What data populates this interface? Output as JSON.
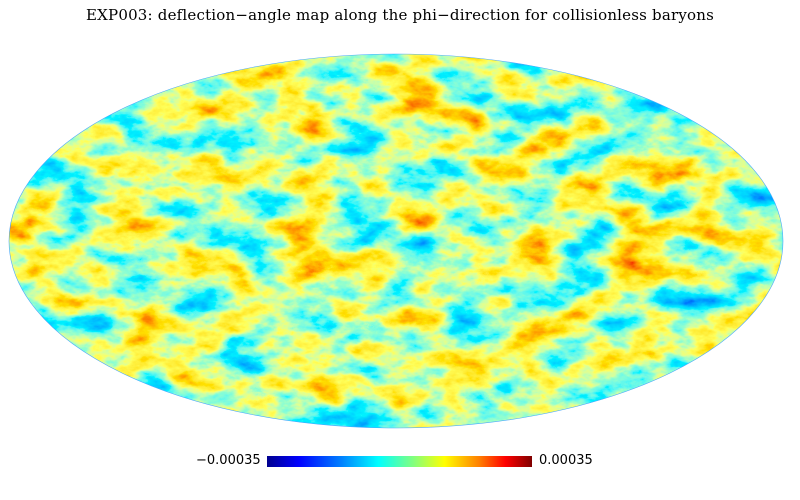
{
  "title": "EXP003: deflection−angle map along the phi−direction for collisionless baryons",
  "colorbar": {
    "min_label": "−0.00035",
    "max_label": "0.00035",
    "colormap": [
      "#00008f",
      "#0000ff",
      "#0080ff",
      "#00ffff",
      "#80ff80",
      "#ffff00",
      "#ff8000",
      "#ff0000",
      "#800000"
    ]
  },
  "projection": "Mollweide (all-sky)",
  "background_color": "#ffffff"
}
